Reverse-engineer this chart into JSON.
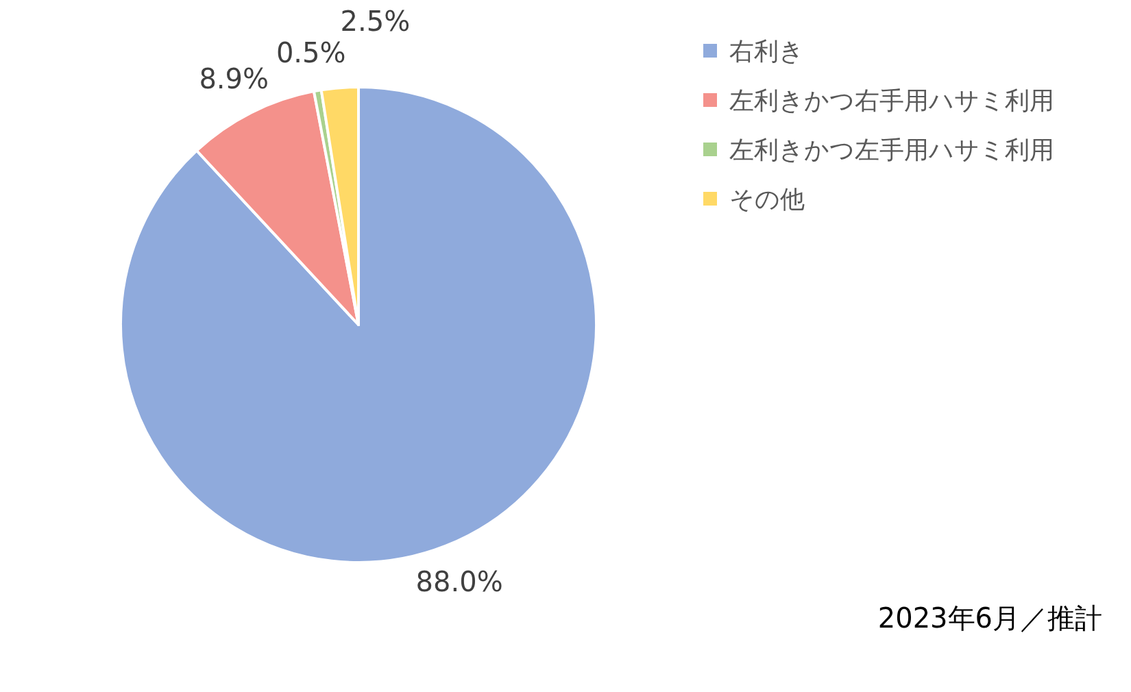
{
  "chart_data": {
    "type": "pie",
    "categories": [
      "右利き",
      "左利きかつ右手用ハサミ利用",
      "左利きかつ左手用ハサミ利用",
      "その他"
    ],
    "values": [
      88.0,
      8.9,
      0.5,
      2.5
    ],
    "value_labels": [
      "88.0%",
      "8.9%",
      "0.5%",
      "2.5%"
    ],
    "colors": [
      "#8faadc",
      "#f4918b",
      "#a9d18e",
      "#ffd966"
    ],
    "legend": "top right",
    "annotations": [
      "2023年6月／推計"
    ]
  }
}
